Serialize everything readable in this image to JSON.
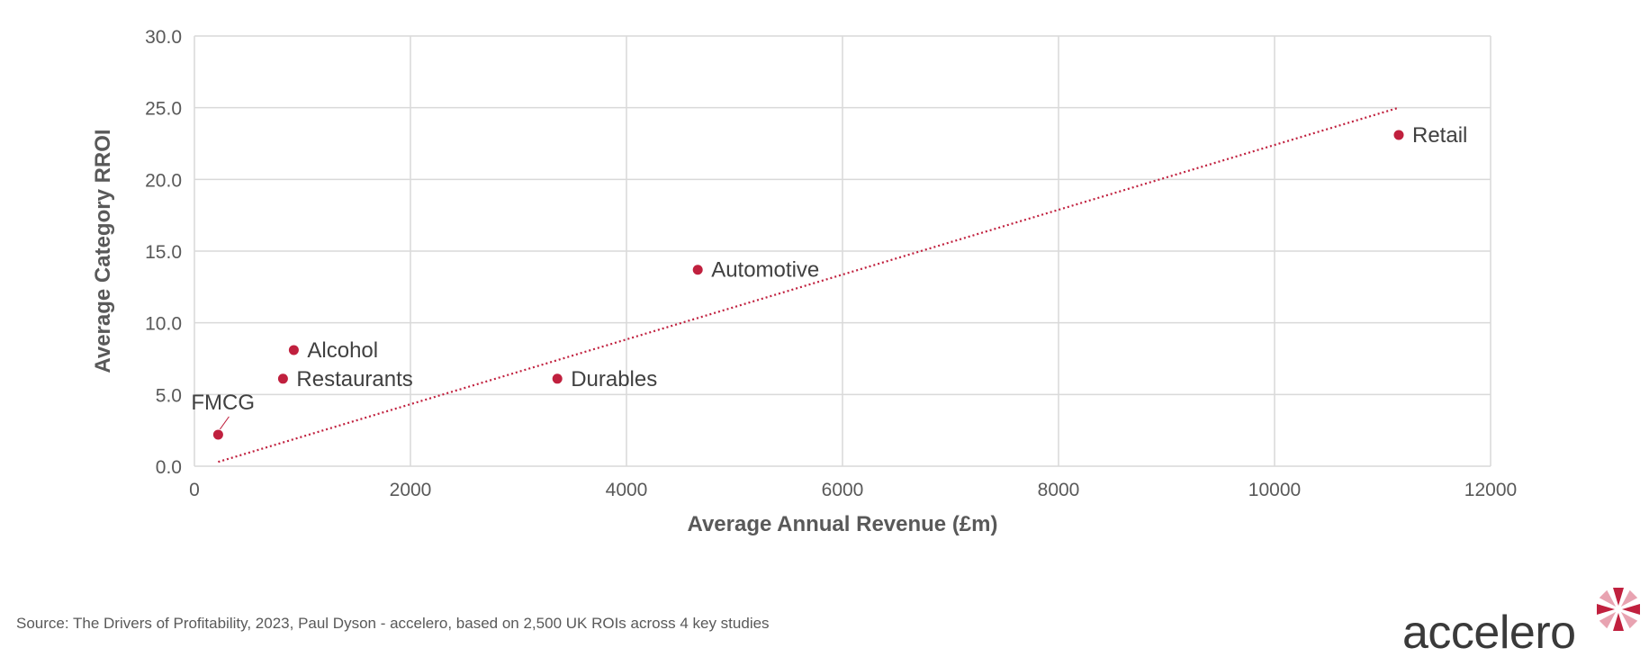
{
  "chart_data": {
    "type": "scatter",
    "xlabel": "Average Annual Revenue (£m)",
    "ylabel": "Average Category RROI",
    "xlim": [
      0,
      12000
    ],
    "ylim": [
      0,
      30
    ],
    "x_ticks": [
      "0",
      "2000",
      "4000",
      "6000",
      "8000",
      "10000",
      "12000"
    ],
    "y_ticks": [
      "0.0",
      "5.0",
      "10.0",
      "15.0",
      "20.0",
      "25.0",
      "30.0"
    ],
    "grid": true,
    "points": [
      {
        "label": "FMCG",
        "x": 220,
        "y": 2.2
      },
      {
        "label": "Restaurants",
        "x": 820,
        "y": 6.1
      },
      {
        "label": "Alcohol",
        "x": 920,
        "y": 8.1
      },
      {
        "label": "Durables",
        "x": 3360,
        "y": 6.1
      },
      {
        "label": "Automotive",
        "x": 4660,
        "y": 13.7
      },
      {
        "label": "Retail",
        "x": 11150,
        "y": 23.1
      }
    ],
    "trendline": {
      "style": "dotted",
      "x": [
        220,
        11150
      ],
      "y": [
        0.3,
        25.0
      ]
    },
    "colors": {
      "point": "#c0203e",
      "trendline": "#c0203e",
      "grid": "#d9d9d9",
      "axis_text": "#595959",
      "label_text": "#404040"
    }
  },
  "footer": {
    "source": "Source: The Drivers of Profitability, 2023, Paul Dyson - accelero, based on 2,500 UK ROIs across 4 key studies"
  },
  "logo": {
    "text": "accelero",
    "icon": "starburst-logo-icon",
    "color": "#c0203e"
  }
}
